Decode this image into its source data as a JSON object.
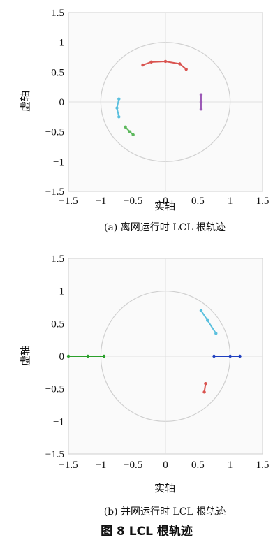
{
  "chart_data": [
    {
      "type": "scatter",
      "title": "",
      "xlabel": "实轴",
      "ylabel": "虚轴",
      "xlim": [
        -1.5,
        1.5
      ],
      "ylim": [
        -1.5,
        1.5
      ],
      "xticks": [
        "−1.5",
        "−1",
        "−0.5",
        "0",
        "0.5",
        "1",
        "1.5"
      ],
      "yticks": [
        "1.5",
        "1",
        "0.5",
        "0",
        "−0.5",
        "−1",
        "−1.5"
      ],
      "caption": "(a) 离网运行时 LCL 根轨迹",
      "series": [
        {
          "color": "#d9534f",
          "x": [
            -0.35,
            -0.22,
            0.0,
            0.22,
            0.32
          ],
          "y": [
            0.62,
            0.67,
            0.68,
            0.64,
            0.55
          ]
        },
        {
          "color": "#5bc0de",
          "x": [
            -0.72,
            -0.75,
            -0.72
          ],
          "y": [
            0.05,
            -0.1,
            -0.25
          ]
        },
        {
          "color": "#5cb85c",
          "x": [
            -0.62,
            -0.55,
            -0.5
          ],
          "y": [
            -0.42,
            -0.5,
            -0.55
          ]
        },
        {
          "color": "#9b59b6",
          "x": [
            0.55,
            0.55,
            0.55
          ],
          "y": [
            0.12,
            0.0,
            -0.12
          ]
        }
      ]
    },
    {
      "type": "scatter",
      "title": "",
      "xlabel": "实轴",
      "ylabel": "虚轴",
      "xlim": [
        -1.5,
        1.5
      ],
      "ylim": [
        -1.5,
        1.5
      ],
      "xticks": [
        "−1.5",
        "−1",
        "−0.5",
        "0",
        "0.5",
        "1",
        "1.5"
      ],
      "yticks": [
        "1.5",
        "1",
        "0.5",
        "0",
        "−0.5",
        "−1",
        "−1.5"
      ],
      "caption": "(b) 并网运行时 LCL 根轨迹",
      "series": [
        {
          "color": "#2ca02c",
          "x": [
            -1.5,
            -1.2,
            -0.95
          ],
          "y": [
            0.0,
            0.0,
            0.0
          ]
        },
        {
          "color": "#1f3fbf",
          "x": [
            0.75,
            1.0,
            1.15
          ],
          "y": [
            0.0,
            0.0,
            0.0
          ]
        },
        {
          "color": "#5bc0de",
          "x": [
            0.55,
            0.65,
            0.78
          ],
          "y": [
            0.7,
            0.55,
            0.35
          ]
        },
        {
          "color": "#d9534f",
          "x": [
            0.62,
            0.6
          ],
          "y": [
            -0.42,
            -0.55
          ]
        }
      ]
    }
  ],
  "figure_caption": "图 8  LCL 根轨迹"
}
